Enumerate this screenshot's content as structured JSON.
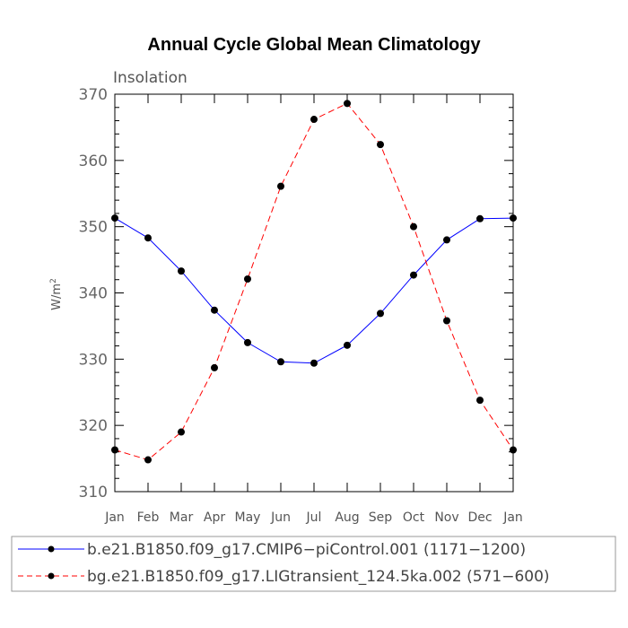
{
  "chart_data": {
    "type": "line",
    "title": "Annual Cycle Global Mean Climatology",
    "subtitle": "Insolation",
    "ylabel": "W/m",
    "ylabel_sup": "2",
    "xlabel": "",
    "categories": [
      "Jan",
      "Feb",
      "Mar",
      "Apr",
      "May",
      "Jun",
      "Jul",
      "Aug",
      "Sep",
      "Oct",
      "Nov",
      "Dec",
      "Jan"
    ],
    "ylim": [
      310,
      370
    ],
    "yticks": [
      310,
      320,
      330,
      340,
      350,
      360,
      370
    ],
    "series": [
      {
        "name": "b.e21.B1850.f09_g17.CMIP6-piControl.001 (1171-1200)",
        "color": "#0000ff",
        "style": "solid",
        "values": [
          351.3,
          348.3,
          343.3,
          337.4,
          332.5,
          329.6,
          329.4,
          332.1,
          336.9,
          342.7,
          348.0,
          351.2,
          351.3
        ]
      },
      {
        "name": "bg.e21.B1850.f09_g17.LIGtransient_124.5ka.002 (571-600)",
        "color": "#ff0000",
        "style": "dashed",
        "values": [
          316.3,
          314.8,
          319.0,
          328.7,
          342.1,
          356.1,
          366.2,
          368.6,
          362.4,
          350.0,
          335.8,
          323.8,
          316.3
        ]
      }
    ],
    "legend": {
      "placement": "bottom",
      "labels": [
        "b.e21.B1850.f09_g17.CMIP6−piControl.001 (1171−1200)",
        "bg.e21.B1850.f09_g17.LIGtransient_124.5ka.002 (571−600)"
      ]
    },
    "grid": false
  }
}
